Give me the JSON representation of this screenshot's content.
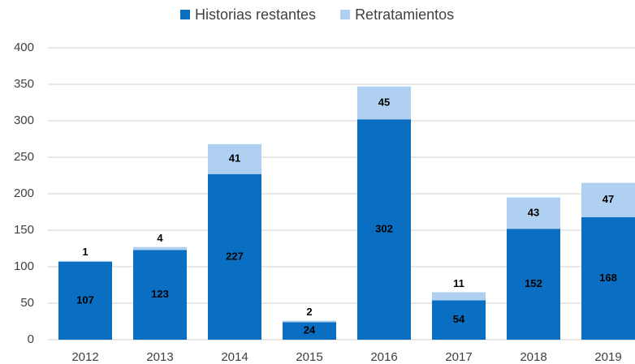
{
  "chart_data": {
    "type": "stacked_bar",
    "categories": [
      "2012",
      "2013",
      "2014",
      "2015",
      "2016",
      "2017",
      "2018",
      "2019"
    ],
    "series": [
      {
        "name": "Historias restantes",
        "color": "#0a6fc2",
        "values": [
          107,
          123,
          227,
          24,
          302,
          54,
          152,
          168
        ]
      },
      {
        "name": "Retratamientos",
        "color": "#afd0f0",
        "values": [
          1,
          4,
          41,
          2,
          45,
          11,
          43,
          47
        ]
      }
    ],
    "ylim": [
      0,
      400
    ],
    "yticks": [
      0,
      50,
      100,
      150,
      200,
      250,
      300,
      350,
      400
    ],
    "grid": true,
    "legend": "top"
  }
}
